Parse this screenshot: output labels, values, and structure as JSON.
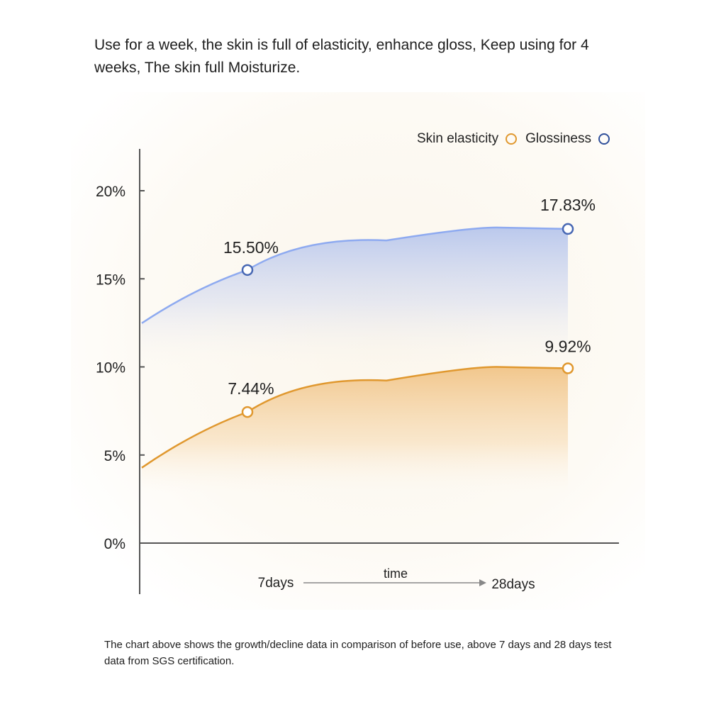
{
  "headline": "Use for a week, the skin is full of elasticity, enhance gloss, Keep using for 4 weeks, The skin full Moisturize.",
  "footnote": "The chart above shows the growth/decline data in comparison of before use, above 7 days and 28 days test data from SGS certification.",
  "colors": {
    "elasticity": "#e0982f",
    "glossiness": "#4767b3",
    "glossiness_line": "#8eaaf0",
    "axis": "#555555"
  },
  "chart_data": {
    "type": "area",
    "title": "",
    "xlabel": "time",
    "ylabel": "",
    "categories": [
      "7days",
      "28days"
    ],
    "yticks": [
      "0%",
      "5%",
      "10%",
      "15%",
      "20%"
    ],
    "ylim": [
      0,
      20
    ],
    "grid": false,
    "legend_position": "top-right",
    "series": [
      {
        "name": "Skin elasticity",
        "values": [
          7.44,
          9.92
        ],
        "labels": [
          "7.44%",
          "9.92%"
        ]
      },
      {
        "name": "Glossiness",
        "values": [
          15.5,
          17.83
        ],
        "labels": [
          "15.50%",
          "17.83%"
        ]
      }
    ]
  }
}
